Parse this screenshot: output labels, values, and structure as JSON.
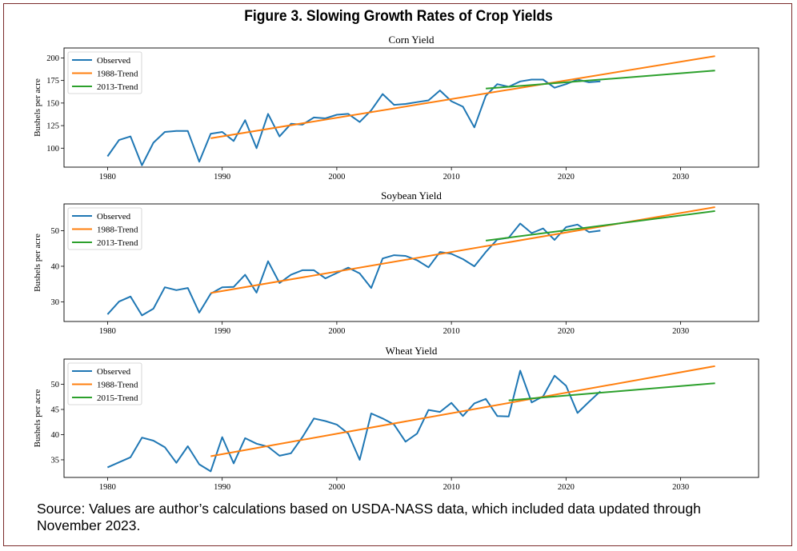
{
  "figure_title": "Figure 3. Slowing Growth Rates of Crop Yields",
  "source_note": "Source: Values are author’s calculations based on USDA-NASS data, which included data updated through November 2023.",
  "colors": {
    "observed": "#1f77b4",
    "trend_1988": "#ff7f0e",
    "trend_recent": "#2ca02c",
    "frame": "#7a2a2a"
  },
  "chart_data": [
    {
      "type": "line",
      "title": "Corn Yield",
      "xlabel": "",
      "ylabel": "Bushels per acre",
      "xlim": [
        1976.2,
        2036.8
      ],
      "ylim": [
        79,
        211
      ],
      "xticks": [
        1980,
        1990,
        2000,
        2010,
        2020,
        2030
      ],
      "yticks": [
        100,
        125,
        150,
        175,
        200
      ],
      "grid": false,
      "legend_position": "top-left",
      "series": [
        {
          "name": "Observed",
          "role": "observed",
          "x": [
            1980,
            1981,
            1982,
            1983,
            1984,
            1985,
            1986,
            1987,
            1988,
            1989,
            1990,
            1991,
            1992,
            1993,
            1994,
            1995,
            1996,
            1997,
            1998,
            1999,
            2000,
            2001,
            2002,
            2003,
            2004,
            2005,
            2006,
            2007,
            2008,
            2009,
            2010,
            2011,
            2012,
            2013,
            2014,
            2015,
            2016,
            2017,
            2018,
            2019,
            2020,
            2021,
            2022,
            2023
          ],
          "y": [
            91,
            109,
            113,
            81,
            106,
            118,
            119,
            119,
            85,
            116,
            118,
            108,
            131,
            100,
            138,
            113,
            127,
            126,
            134,
            133,
            137,
            138,
            129,
            142,
            160,
            148,
            149,
            151,
            153,
            164,
            152,
            146,
            123,
            158,
            171,
            168,
            174,
            176,
            176,
            167,
            171,
            176,
            173,
            174
          ]
        },
        {
          "name": "1988-Trend",
          "role": "trend_1988",
          "x": [
            1989,
            2033
          ],
          "y": [
            111,
            202
          ]
        },
        {
          "name": "2013-Trend",
          "role": "trend_recent",
          "x": [
            2013,
            2033
          ],
          "y": [
            166,
            186
          ]
        }
      ]
    },
    {
      "type": "line",
      "title": "Soybean Yield",
      "xlabel": "",
      "ylabel": "Bushels per acre",
      "xlim": [
        1976.2,
        2036.8
      ],
      "ylim": [
        24.5,
        57.5
      ],
      "xticks": [
        1980,
        1990,
        2000,
        2010,
        2020,
        2030
      ],
      "yticks": [
        30,
        40,
        50
      ],
      "grid": false,
      "legend_position": "top-left",
      "series": [
        {
          "name": "Observed",
          "role": "observed",
          "x": [
            1980,
            1981,
            1982,
            1983,
            1984,
            1985,
            1986,
            1987,
            1988,
            1989,
            1990,
            1991,
            1992,
            1993,
            1994,
            1995,
            1996,
            1997,
            1998,
            1999,
            2000,
            2001,
            2002,
            2003,
            2004,
            2005,
            2006,
            2007,
            2008,
            2009,
            2010,
            2011,
            2012,
            2013,
            2014,
            2015,
            2016,
            2017,
            2018,
            2019,
            2020,
            2021,
            2022,
            2023
          ],
          "y": [
            26.5,
            30.1,
            31.5,
            26.2,
            28.1,
            34.1,
            33.3,
            33.9,
            27.0,
            32.3,
            34.1,
            34.2,
            37.6,
            32.6,
            41.4,
            35.3,
            37.6,
            38.9,
            38.9,
            36.6,
            38.1,
            39.6,
            38.0,
            33.9,
            42.2,
            43.1,
            42.9,
            41.7,
            39.7,
            44.0,
            43.5,
            42.0,
            40.0,
            44.0,
            47.5,
            48.0,
            52.0,
            49.3,
            50.6,
            47.4,
            51.0,
            51.7,
            49.6,
            50.0
          ]
        },
        {
          "name": "1988-Trend",
          "role": "trend_1988",
          "x": [
            1989,
            2033
          ],
          "y": [
            32.5,
            56.6
          ]
        },
        {
          "name": "2013-Trend",
          "role": "trend_recent",
          "x": [
            2013,
            2033
          ],
          "y": [
            47.2,
            55.5
          ]
        }
      ]
    },
    {
      "type": "line",
      "title": "Wheat Yield",
      "xlabel": "",
      "ylabel": "Bushels per acre",
      "xlim": [
        1976.2,
        2036.8
      ],
      "ylim": [
        31.5,
        55
      ],
      "xticks": [
        1980,
        1990,
        2000,
        2010,
        2020,
        2030
      ],
      "yticks": [
        35,
        40,
        45,
        50
      ],
      "grid": false,
      "legend_position": "top-left",
      "series": [
        {
          "name": "Observed",
          "role": "observed",
          "x": [
            1980,
            1981,
            1982,
            1983,
            1984,
            1985,
            1986,
            1987,
            1988,
            1989,
            1990,
            1991,
            1992,
            1993,
            1994,
            1995,
            1996,
            1997,
            1998,
            1999,
            2000,
            2001,
            2002,
            2003,
            2004,
            2005,
            2006,
            2007,
            2008,
            2009,
            2010,
            2011,
            2012,
            2013,
            2014,
            2015,
            2016,
            2017,
            2018,
            2019,
            2020,
            2021,
            2022,
            2023
          ],
          "y": [
            33.5,
            34.5,
            35.5,
            39.4,
            38.8,
            37.5,
            34.4,
            37.7,
            34.1,
            32.7,
            39.5,
            34.3,
            39.3,
            38.2,
            37.6,
            35.8,
            36.3,
            39.5,
            43.2,
            42.7,
            42.0,
            40.2,
            35.0,
            44.2,
            43.2,
            42.0,
            38.6,
            40.2,
            44.9,
            44.5,
            46.3,
            43.7,
            46.2,
            47.1,
            43.7,
            43.6,
            52.7,
            46.4,
            47.6,
            51.7,
            49.7,
            44.3,
            46.5,
            48.6
          ]
        },
        {
          "name": "1988-Trend",
          "role": "trend_1988",
          "x": [
            1989,
            2033
          ],
          "y": [
            35.7,
            53.6
          ]
        },
        {
          "name": "2015-Trend",
          "role": "trend_recent",
          "x": [
            2015,
            2033
          ],
          "y": [
            46.8,
            50.2
          ]
        }
      ]
    }
  ]
}
